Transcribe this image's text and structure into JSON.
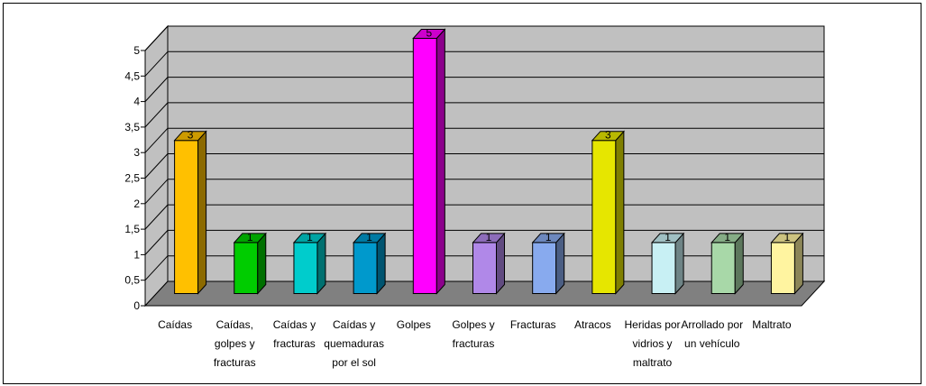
{
  "chart_data": {
    "type": "bar",
    "style": "3d-column",
    "categories": [
      "Caídas",
      "Caídas, golpes y fracturas",
      "Caídas y fracturas",
      "Caídas y quemaduras por el sol",
      "Golpes",
      "Golpes y fracturas",
      "Fracturas",
      "Atracos",
      "Heridas por vidrios y maltrato",
      "Arrollado por un vehículo",
      "Maltrato"
    ],
    "category_label_lines": [
      [
        "Caídas"
      ],
      [
        "Caídas,",
        "golpes y",
        "fracturas"
      ],
      [
        "Caídas y",
        "fracturas"
      ],
      [
        "Caídas y",
        "quemaduras",
        "por el sol"
      ],
      [
        "Golpes"
      ],
      [
        "Golpes y",
        "fracturas"
      ],
      [
        "Fracturas"
      ],
      [
        "Atracos"
      ],
      [
        "Heridas por",
        "vidrios y",
        "maltrato"
      ],
      [
        "Arrollado por",
        "un vehículo"
      ],
      [
        "Maltrato"
      ]
    ],
    "values": [
      3,
      1,
      1,
      1,
      5,
      1,
      1,
      3,
      1,
      1,
      1
    ],
    "data_labels": [
      "3",
      "1",
      "1",
      "1",
      "5",
      "1",
      "1",
      "3",
      "1",
      "1",
      "1"
    ],
    "bar_colors": [
      "#FFC000",
      "#00CC00",
      "#00CCCC",
      "#0099CC",
      "#FF00FF",
      "#B088E8",
      "#88AAEE",
      "#E6E600",
      "#C8F0F4",
      "#A8D8A8",
      "#FFF4A0"
    ],
    "ylim": [
      0,
      5
    ],
    "yticks": [
      "0",
      "0,5",
      "1",
      "1,5",
      "2",
      "2,5",
      "3",
      "3,5",
      "4",
      "4,5",
      "5"
    ],
    "title": "",
    "xlabel": "",
    "ylabel": "",
    "grid": true,
    "wall_color": "#C0C0C0",
    "floor_color": "#808080",
    "legend": "none"
  }
}
